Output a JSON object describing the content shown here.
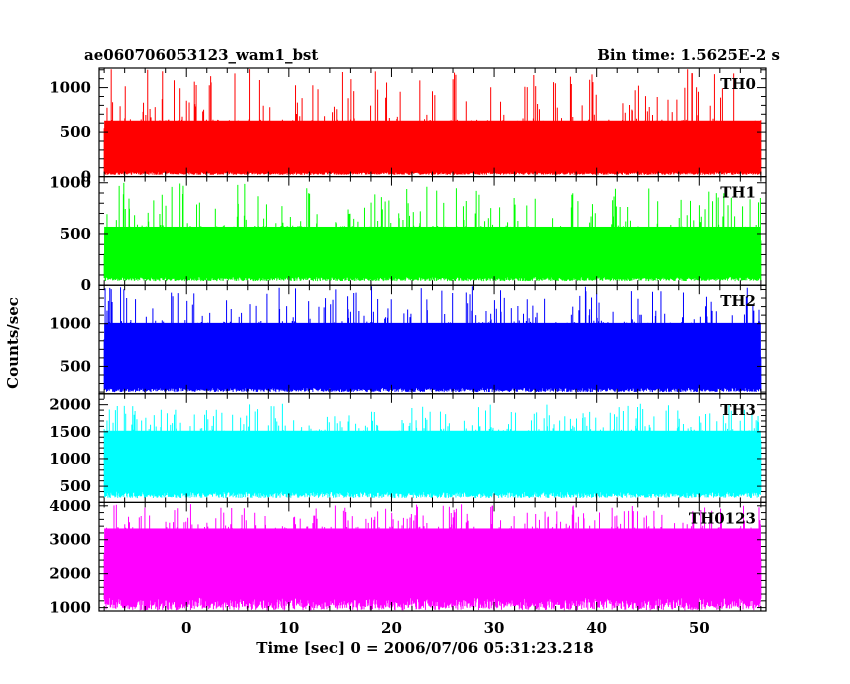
{
  "chart_data": {
    "type": "line",
    "title_left": "ae060706053123_wam1_bst",
    "title_right": "Bin time: 1.5625E-2 s",
    "xlabel": "Time [sec] 0 = 2006/07/06 05:31:23.218",
    "ylabel": "Counts/sec",
    "xlim": [
      -8.5,
      56.5
    ],
    "x_data_range": [
      -8.0,
      56.0
    ],
    "x_ticks": [
      0,
      10,
      20,
      30,
      40,
      50
    ],
    "x_tick_labels": [
      "0",
      "10",
      "20",
      "30",
      "40",
      "50"
    ],
    "x_minor_step": 2,
    "grid": false,
    "legend": "none",
    "panels": [
      {
        "name": "TH0",
        "color": "#ff0000",
        "ylim": [
          0,
          1220
        ],
        "y_ticks": [
          0,
          500,
          1000
        ],
        "y_tick_labels": [
          "0",
          "500",
          "1000"
        ],
        "y_minor_step": 100,
        "mean": 330,
        "low": 20,
        "high": 1210,
        "band_lo": 50,
        "band_hi": 640
      },
      {
        "name": "TH1",
        "color": "#00ff00",
        "ylim": [
          0,
          1060
        ],
        "y_ticks": [
          0,
          500,
          1000
        ],
        "y_tick_labels": [
          "0",
          "500",
          "1000"
        ],
        "y_minor_step": 100,
        "mean": 300,
        "low": 40,
        "high": 1000,
        "band_lo": 80,
        "band_hi": 580
      },
      {
        "name": "TH2",
        "color": "#0000ff",
        "ylim": [
          180,
          1450
        ],
        "y_ticks": [
          500,
          1000
        ],
        "y_tick_labels": [
          "500",
          "1000"
        ],
        "y_minor_step": 100,
        "mean": 640,
        "low": 200,
        "high": 1440,
        "band_lo": 250,
        "band_hi": 1030
      },
      {
        "name": "TH3",
        "color": "#00ffff",
        "ylim": [
          200,
          2200
        ],
        "y_ticks": [
          500,
          1000,
          1500,
          2000
        ],
        "y_tick_labels": [
          "500",
          "1000",
          "1500",
          "2000"
        ],
        "y_minor_step": 100,
        "mean": 1000,
        "low": 280,
        "high": 2020,
        "band_lo": 400,
        "band_hi": 1550
      },
      {
        "name": "TH0123",
        "color": "#ff00ff",
        "ylim": [
          900,
          4100
        ],
        "y_ticks": [
          1000,
          2000,
          3000,
          4000
        ],
        "y_tick_labels": [
          "1000",
          "2000",
          "3000",
          "4000"
        ],
        "y_minor_step": 200,
        "mean": 2300,
        "low": 920,
        "high": 4050,
        "band_lo": 1300,
        "band_hi": 3400
      }
    ]
  }
}
